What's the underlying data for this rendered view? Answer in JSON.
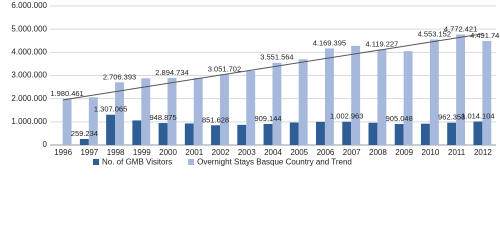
{
  "chart_data": {
    "type": "bar",
    "categories": [
      "1996",
      "1997",
      "1998",
      "1999",
      "2000",
      "2001",
      "2002",
      "2003",
      "2004",
      "2005",
      "2006",
      "2007",
      "2008",
      "2009",
      "2010",
      "2011",
      "2012"
    ],
    "series": [
      {
        "name": "No. of GMB Visitors",
        "color": "#2f5d96",
        "values": [
          null,
          259234,
          1307065,
          1060000,
          948875,
          930000,
          851628,
          870000,
          909144,
          970000,
          1000000,
          1002963,
          960000,
          905048,
          920000,
          962358,
          1014104
        ],
        "value_labels": [
          null,
          "259.234",
          "1.307.065",
          null,
          "948.875",
          null,
          "851.628",
          null,
          "909.144",
          null,
          null,
          "1.002.963",
          null,
          "905.048",
          null,
          "962.358",
          "1.014.104"
        ]
      },
      {
        "name": "Overnight Stays Basque Country and Trend",
        "color": "#a6b9dd",
        "values": [
          1980461,
          2060000,
          2706393,
          2880000,
          2894734,
          2900000,
          3051702,
          3200000,
          3551564,
          3700000,
          4169395,
          4280000,
          4119227,
          4050000,
          4553152,
          4772421,
          4491745
        ],
        "value_labels": [
          "1.980.461",
          null,
          "2.706.393",
          null,
          "2.894.734",
          null,
          "3.051.702",
          null,
          "3.551.564",
          null,
          "4.169.395",
          null,
          "4.119.227",
          null,
          "4.553.152",
          "4.772.421",
          "4.491.745"
        ]
      }
    ],
    "trend": {
      "color": "#555555",
      "start": 1950000,
      "end": 4800000
    },
    "ylim": [
      0,
      6000000
    ],
    "yticks": [
      0,
      {
        "value": 1000000,
        "label": "1.000.000"
      },
      {
        "value": 2000000,
        "label": "2.000.000"
      },
      {
        "value": 3000000,
        "label": "3.000.000"
      },
      {
        "value": 4000000,
        "label": "4.000.000"
      },
      {
        "value": 5000000,
        "label": "5.000.000"
      },
      {
        "value": 6000000,
        "label": "6.000.000"
      }
    ],
    "grid": true,
    "legend": "bottom"
  }
}
